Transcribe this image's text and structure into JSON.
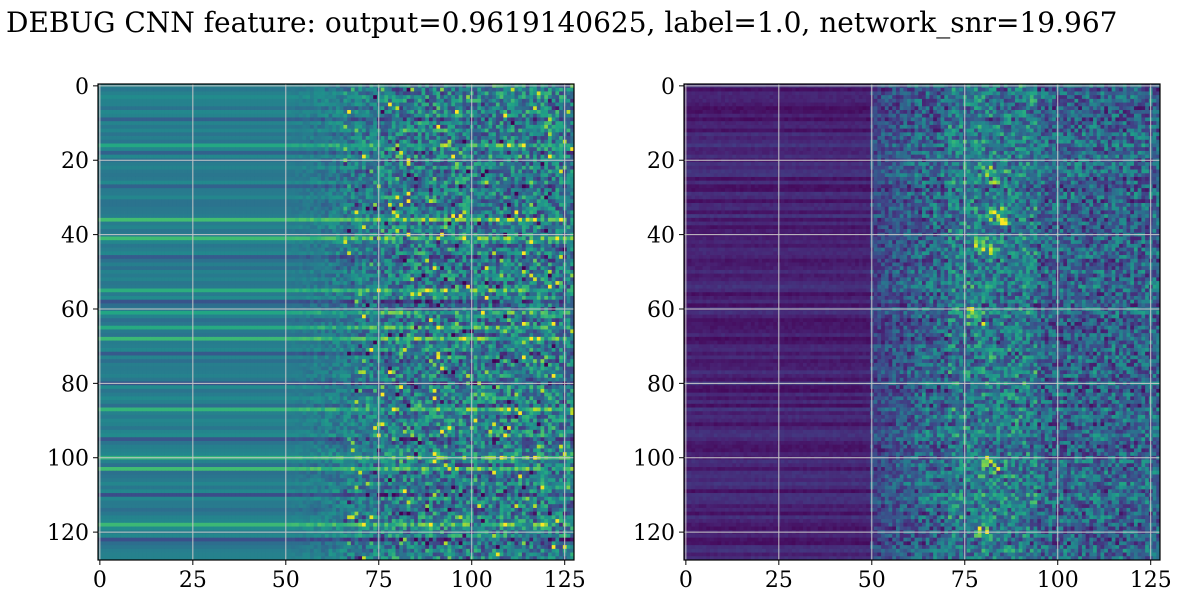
{
  "figure": {
    "title": "DEBUG CNN feature: output=0.9619140625, label=1.0, network_snr=19.967"
  },
  "colors": {
    "colormap": "viridis",
    "grid": "#c8c8c8",
    "axes": "#000000"
  },
  "chart_data": [
    {
      "type": "heatmap",
      "name": "left-panel",
      "colormap": "viridis",
      "rows": 128,
      "cols": 128,
      "xlim": [
        0,
        127
      ],
      "ylim": [
        127,
        0
      ],
      "xticks": [
        "0",
        "25",
        "50",
        "75",
        "100",
        "125"
      ],
      "yticks": [
        "0",
        "20",
        "40",
        "60",
        "80",
        "100",
        "120"
      ],
      "grid": true,
      "description_values": {
        "baseline_level": 0.42,
        "noise_onset_col": 65,
        "bright_rows": [
          16,
          36,
          41,
          55,
          61,
          65,
          68,
          87,
          100,
          103,
          118
        ],
        "dark_rows": [
          9,
          18,
          27,
          46,
          58,
          72,
          80,
          95,
          110,
          122
        ]
      }
    },
    {
      "type": "heatmap",
      "name": "right-panel",
      "colormap": "viridis",
      "rows": 128,
      "cols": 128,
      "xlim": [
        0,
        127
      ],
      "ylim": [
        127,
        0
      ],
      "xticks": [
        "0",
        "25",
        "50",
        "75",
        "100",
        "125"
      ],
      "yticks": [
        "0",
        "20",
        "40",
        "60",
        "80",
        "100",
        "120"
      ],
      "grid": true,
      "description_values": {
        "baseline_level": 0.1,
        "noise_onset_col": 50,
        "hot_spots": [
          [
            24,
            82
          ],
          [
            35,
            84
          ],
          [
            43,
            80
          ],
          [
            62,
            78
          ],
          [
            102,
            82
          ],
          [
            120,
            80
          ]
        ]
      }
    }
  ]
}
